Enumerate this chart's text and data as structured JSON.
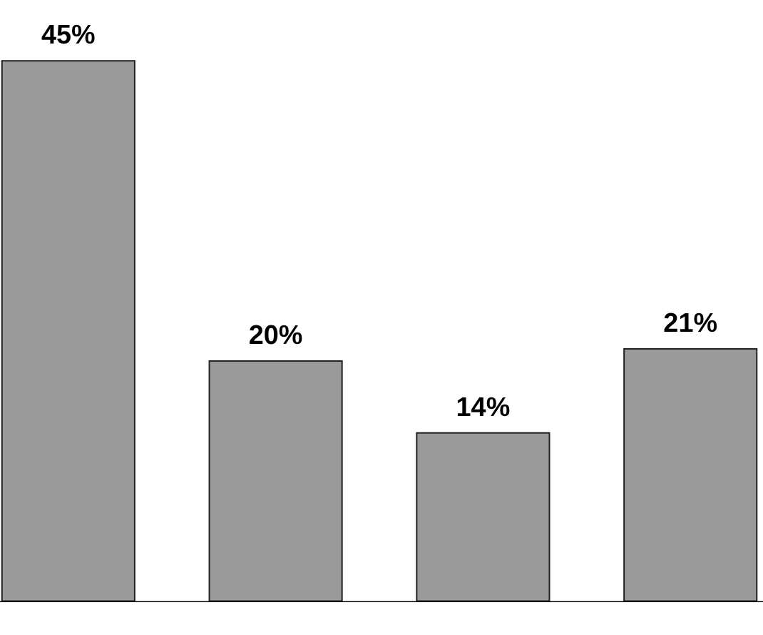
{
  "chart_data": {
    "type": "bar",
    "categories": [
      null,
      null,
      null,
      null
    ],
    "values": [
      45,
      20,
      14,
      21
    ],
    "value_labels": [
      "45%",
      "20%",
      "14%",
      "21%"
    ],
    "color": "#9a9a9a",
    "grid": false
  }
}
